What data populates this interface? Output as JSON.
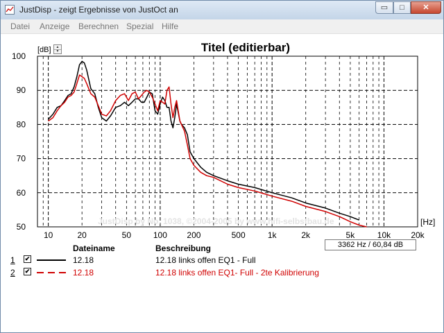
{
  "window": {
    "title": "JustDisp - zeigt Ergebnisse von JustOct an"
  },
  "controls": {
    "minimize": "▭",
    "maximize": "□",
    "close": "✕"
  },
  "menu": [
    "Datei",
    "Anzeige",
    "Berechnen",
    "Spezial",
    "Hilfe"
  ],
  "chart_data": {
    "type": "line",
    "title": "Titel (editierbar)",
    "ylabel": "[dB]",
    "xlabel": "[Hz]",
    "xscale": "log",
    "xlim": [
      8,
      20000
    ],
    "ylim": [
      50,
      100
    ],
    "y_ticks": [
      50,
      60,
      70,
      80,
      90,
      100
    ],
    "x_ticks": [
      10,
      20,
      50,
      100,
      200,
      500,
      1000,
      2000,
      5000,
      10000,
      20000
    ],
    "x_tick_labels": [
      "10",
      "20",
      "50",
      "100",
      "200",
      "500",
      "1k",
      "2k",
      "5k",
      "10k",
      "20k"
    ],
    "grid": true,
    "watermark": "JustDisp by No. 1038, ©2004-2005 by www.hifi-selbstbau.de",
    "series": [
      {
        "name": "12.18 links offen EQ1 - Full",
        "color": "#000000",
        "dash": "solid",
        "points": [
          [
            10,
            81.5
          ],
          [
            11,
            83
          ],
          [
            12,
            85
          ],
          [
            13,
            85.5
          ],
          [
            14,
            87
          ],
          [
            15,
            88.5
          ],
          [
            16,
            89
          ],
          [
            17,
            91
          ],
          [
            18,
            94
          ],
          [
            19,
            97.5
          ],
          [
            20,
            98.5
          ],
          [
            21,
            98
          ],
          [
            22,
            96
          ],
          [
            24,
            90.5
          ],
          [
            26,
            89
          ],
          [
            28,
            85
          ],
          [
            30,
            82
          ],
          [
            33,
            81
          ],
          [
            36,
            82.5
          ],
          [
            40,
            85
          ],
          [
            44,
            85.5
          ],
          [
            48,
            86.5
          ],
          [
            52,
            85.5
          ],
          [
            56,
            86.5
          ],
          [
            60,
            87.5
          ],
          [
            64,
            87.5
          ],
          [
            68,
            86.5
          ],
          [
            72,
            86.5
          ],
          [
            76,
            88
          ],
          [
            80,
            89.5
          ],
          [
            85,
            89
          ],
          [
            90,
            84
          ],
          [
            95,
            83
          ],
          [
            100,
            86
          ],
          [
            105,
            88
          ],
          [
            110,
            87
          ],
          [
            115,
            85
          ],
          [
            120,
            85
          ],
          [
            125,
            81
          ],
          [
            130,
            79
          ],
          [
            135,
            82
          ],
          [
            140,
            86
          ],
          [
            145,
            83.5
          ],
          [
            150,
            81
          ],
          [
            155,
            80
          ],
          [
            165,
            79
          ],
          [
            175,
            77
          ],
          [
            185,
            72
          ],
          [
            200,
            70
          ],
          [
            230,
            67.5
          ],
          [
            260,
            66
          ],
          [
            300,
            65
          ],
          [
            400,
            63.5
          ],
          [
            500,
            62.5
          ],
          [
            700,
            61.5
          ],
          [
            1000,
            60
          ],
          [
            1500,
            58.5
          ],
          [
            2000,
            57
          ],
          [
            3000,
            55.5
          ],
          [
            4000,
            54
          ],
          [
            5000,
            53
          ],
          [
            6000,
            52
          ]
        ]
      },
      {
        "name": "12.18 links offen EQ1- Full - 2te Kalibrierung",
        "color": "#d00000",
        "dash": "dashed",
        "points": [
          [
            10,
            81
          ],
          [
            11,
            82
          ],
          [
            12,
            84
          ],
          [
            13,
            85.5
          ],
          [
            14,
            86.5
          ],
          [
            15,
            88
          ],
          [
            16,
            88.5
          ],
          [
            17,
            89.5
          ],
          [
            18,
            92
          ],
          [
            19,
            94.5
          ],
          [
            20,
            94
          ],
          [
            21,
            93.5
          ],
          [
            22,
            92
          ],
          [
            24,
            89
          ],
          [
            26,
            88
          ],
          [
            28,
            85.5
          ],
          [
            30,
            83
          ],
          [
            33,
            82.5
          ],
          [
            36,
            84
          ],
          [
            40,
            87
          ],
          [
            44,
            88.5
          ],
          [
            48,
            89
          ],
          [
            52,
            87
          ],
          [
            56,
            89
          ],
          [
            60,
            89.5
          ],
          [
            64,
            87.5
          ],
          [
            68,
            88.5
          ],
          [
            72,
            89.5
          ],
          [
            76,
            90
          ],
          [
            80,
            89.5
          ],
          [
            85,
            88
          ],
          [
            90,
            86
          ],
          [
            95,
            84
          ],
          [
            100,
            87
          ],
          [
            105,
            86.5
          ],
          [
            110,
            86
          ],
          [
            115,
            90
          ],
          [
            120,
            91
          ],
          [
            125,
            86
          ],
          [
            130,
            82
          ],
          [
            135,
            85
          ],
          [
            140,
            87
          ],
          [
            145,
            84
          ],
          [
            150,
            81
          ],
          [
            155,
            80
          ],
          [
            165,
            78
          ],
          [
            175,
            74
          ],
          [
            185,
            70
          ],
          [
            200,
            68
          ],
          [
            230,
            66
          ],
          [
            260,
            65
          ],
          [
            300,
            64.5
          ],
          [
            400,
            62.5
          ],
          [
            500,
            61.5
          ],
          [
            700,
            60.5
          ],
          [
            1000,
            59
          ],
          [
            1500,
            57.5
          ],
          [
            2000,
            56
          ],
          [
            3000,
            54.5
          ],
          [
            4000,
            53
          ],
          [
            5000,
            51.5
          ],
          [
            6000,
            50.5
          ],
          [
            7000,
            50
          ]
        ]
      }
    ]
  },
  "readout": "3362 Hz / 60,84 dB",
  "legend": {
    "col_filename": "Dateiname",
    "col_description": "Beschreibung",
    "rows": [
      {
        "index": "1",
        "checked": "✔",
        "filename": "12.18",
        "description": "12.18 links offen EQ1 - Full",
        "color": "#000000"
      },
      {
        "index": "2",
        "checked": "✔",
        "filename": "12.18",
        "description": "12.18 links offen EQ1- Full - 2te Kalibrierung",
        "color": "#d00000"
      }
    ]
  }
}
